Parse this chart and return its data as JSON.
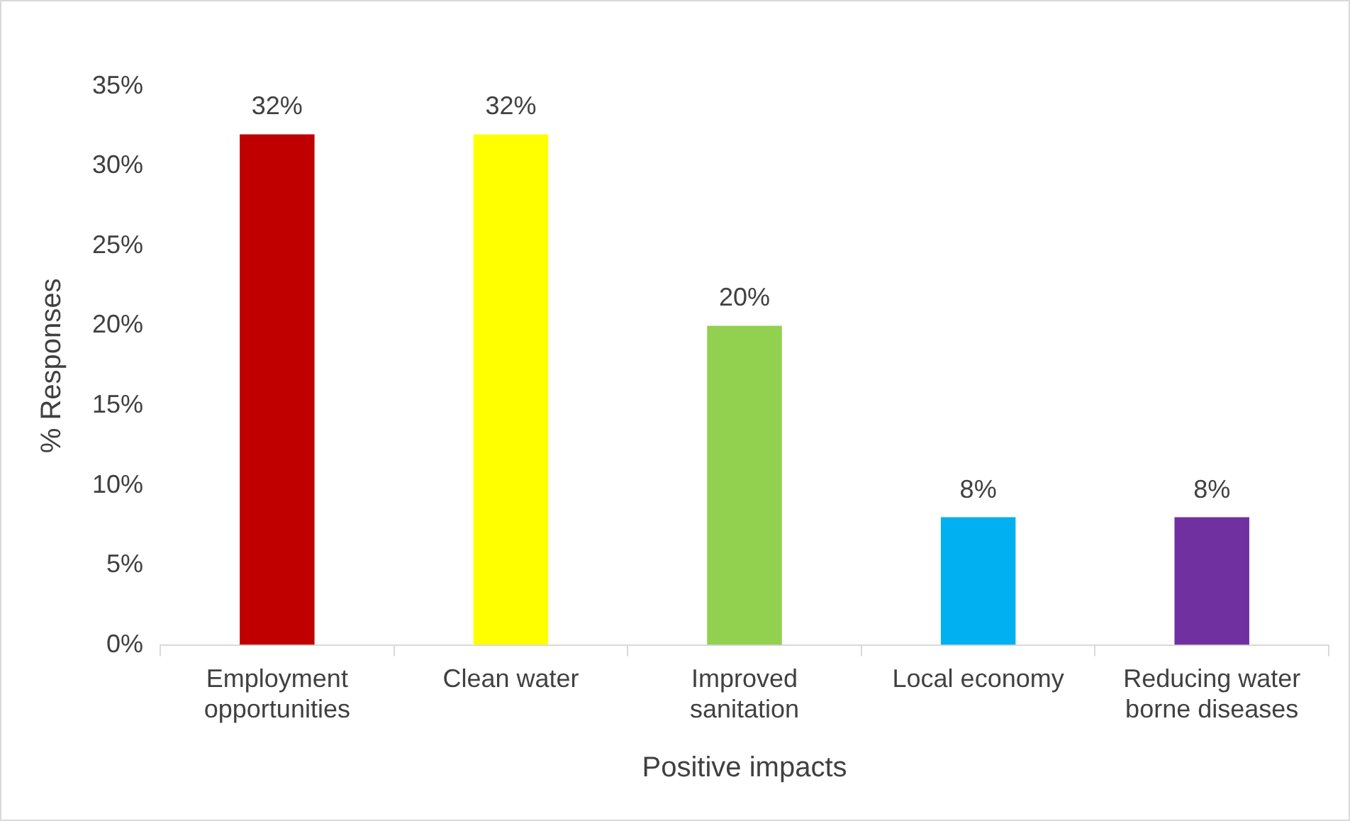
{
  "chart_data": {
    "type": "bar",
    "xlabel": "Positive impacts",
    "ylabel": "% Responses",
    "categories": [
      "Employment opportunities",
      "Clean water",
      "Improved sanitation",
      "Local economy",
      "Reducing water borne diseases"
    ],
    "values": [
      32,
      32,
      20,
      8,
      8
    ],
    "colors": [
      "#c00000",
      "#ffff00",
      "#92d050",
      "#00b0f0",
      "#7030a0"
    ],
    "ylim": [
      0,
      35
    ],
    "yticks": [
      {
        "value": 0,
        "label": "0%"
      },
      {
        "value": 5,
        "label": "5%"
      },
      {
        "value": 10,
        "label": "10%"
      },
      {
        "value": 15,
        "label": "15%"
      },
      {
        "value": 20,
        "label": "20%"
      },
      {
        "value": 25,
        "label": "25%"
      },
      {
        "value": 30,
        "label": "30%"
      },
      {
        "value": 35,
        "label": "35%"
      }
    ],
    "value_labels": [
      "32%",
      "32%",
      "20%",
      "8%",
      "8%"
    ],
    "grid": false,
    "legend": false
  }
}
